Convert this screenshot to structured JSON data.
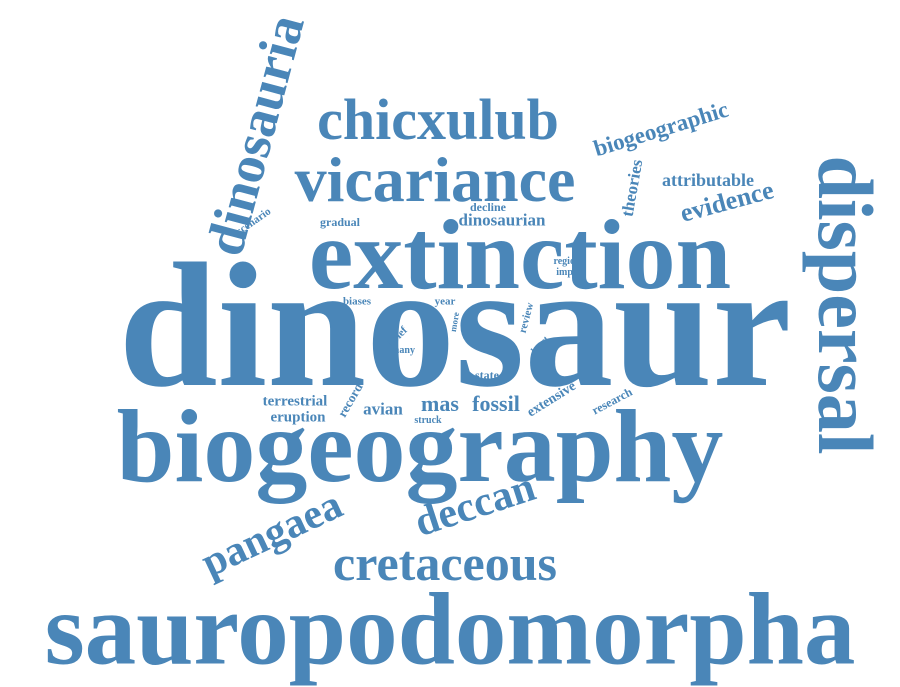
{
  "color": "#4a86b8",
  "words": [
    {
      "text": "sauropodomorpha"
    },
    {
      "text": "dinosaur"
    },
    {
      "text": "biogeography"
    },
    {
      "text": "extinction"
    },
    {
      "text": "vicariance"
    },
    {
      "text": "dispersal"
    },
    {
      "text": "dinosauria"
    },
    {
      "text": "chicxulub"
    },
    {
      "text": "cretaceous"
    },
    {
      "text": "pangaea"
    },
    {
      "text": "deccan"
    },
    {
      "text": "biogeographic"
    },
    {
      "text": "evidence"
    },
    {
      "text": "attributable"
    },
    {
      "text": "theories"
    },
    {
      "text": "dinosaurian"
    },
    {
      "text": "decline"
    },
    {
      "text": "gradual"
    },
    {
      "text": "scenario"
    },
    {
      "text": "region"
    },
    {
      "text": "impact"
    },
    {
      "text": "biases"
    },
    {
      "text": "year"
    },
    {
      "text": "more"
    },
    {
      "text": "brief"
    },
    {
      "text": "many"
    },
    {
      "text": "review"
    },
    {
      "text": "latest"
    },
    {
      "text": "state"
    },
    {
      "text": "terrestrial"
    },
    {
      "text": "eruption"
    },
    {
      "text": "record"
    },
    {
      "text": "avian"
    },
    {
      "text": "mas"
    },
    {
      "text": "fossil"
    },
    {
      "text": "struck"
    },
    {
      "text": "extensive"
    },
    {
      "text": "research"
    }
  ]
}
